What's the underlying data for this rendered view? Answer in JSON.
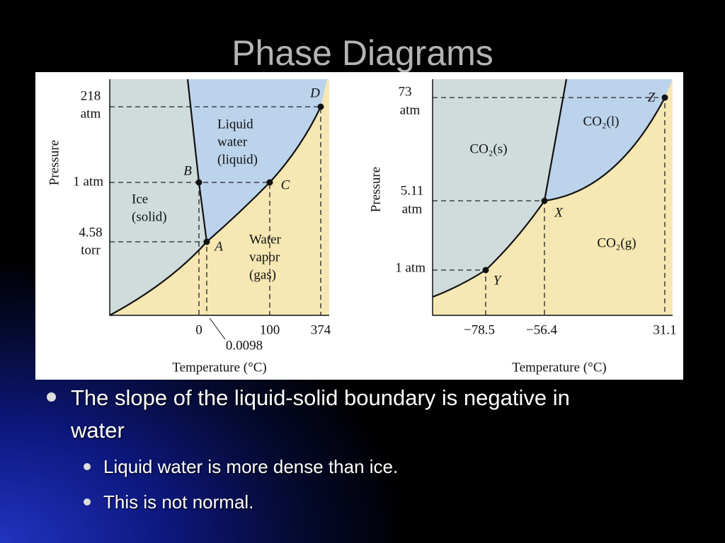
{
  "title": "Phase Diagrams",
  "water": {
    "y_label": "Pressure",
    "x_label": "Temperature (°C)",
    "y_ticks": [
      [
        "218",
        "atm"
      ],
      [
        "1 atm"
      ],
      [
        "4.58",
        "torr"
      ]
    ],
    "x_ticks": [
      "0",
      "100",
      "374",
      "0.0098"
    ],
    "points": [
      "A",
      "B",
      "C",
      "D"
    ],
    "regions": {
      "liquid": [
        "Liquid",
        "water",
        "(liquid)"
      ],
      "solid": [
        "Ice",
        "(solid)"
      ],
      "gas": [
        "Water",
        "vapor",
        "(gas)"
      ]
    }
  },
  "co2": {
    "y_label": "Pressure",
    "x_label": "Temperature (°C)",
    "y_ticks": [
      [
        "73",
        "atm"
      ],
      [
        "5.11",
        "atm"
      ],
      [
        "1 atm"
      ]
    ],
    "x_ticks": [
      "−78.5",
      "−56.4",
      "31.1"
    ],
    "points": [
      "X",
      "Y",
      "Z"
    ],
    "regions": {
      "solid": "CO₂(s)",
      "liquid": "CO₂(l)",
      "gas": "CO₂(g)"
    }
  },
  "bullets": [
    {
      "text": "The slope of the liquid-solid boundary is negative in water",
      "sub": [
        "Liquid water is more dense than ice.",
        "This is not normal."
      ]
    }
  ]
}
